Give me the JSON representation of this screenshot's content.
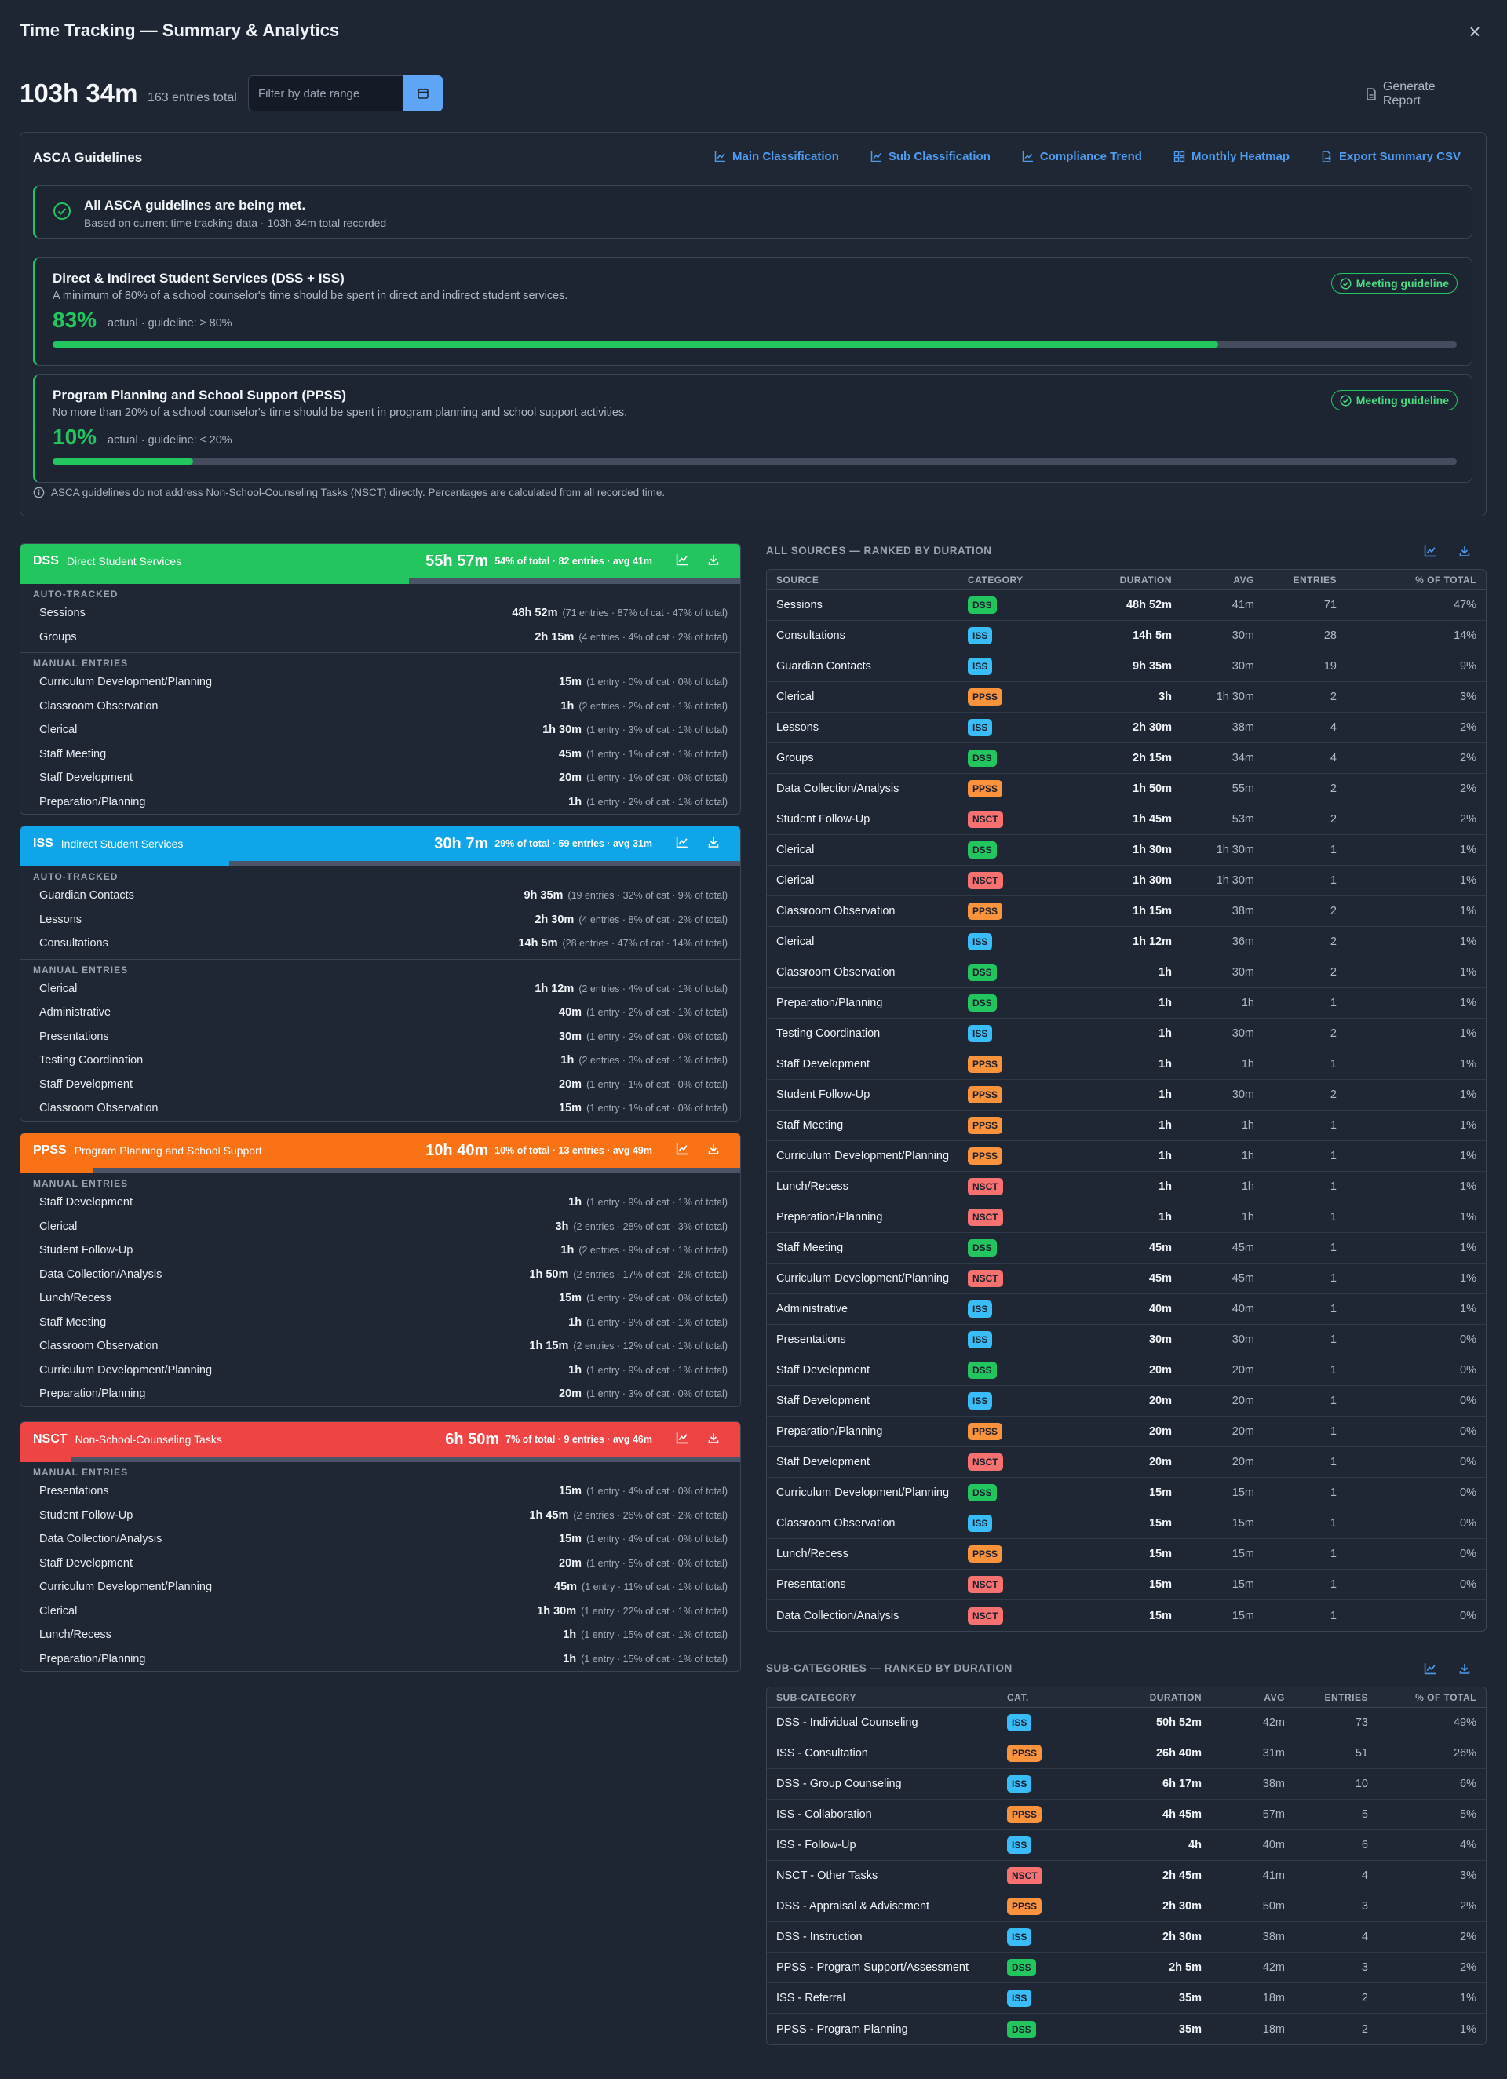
{
  "header": {
    "title": "Time Tracking — Summary & Analytics",
    "total": "103h 34m",
    "total_sub": "163 entries total",
    "filter_placeholder": "Filter by date range",
    "generate_report": "Generate Report"
  },
  "asca": {
    "title": "ASCA Guidelines",
    "links": [
      {
        "label": "Main Classification",
        "icon": "line-chart-icon"
      },
      {
        "label": "Sub Classification",
        "icon": "line-chart-icon"
      },
      {
        "label": "Compliance Trend",
        "icon": "trend-icon"
      },
      {
        "label": "Monthly Heatmap",
        "icon": "grid-icon"
      },
      {
        "label": "Export Summary CSV",
        "icon": "file-export-icon"
      }
    ],
    "alert_title": "All ASCA guidelines are being met.",
    "alert_sub": "Based on current time tracking data · 103h 34m total recorded",
    "guidelines": [
      {
        "title": "Direct & Indirect Student Services (DSS + ISS)",
        "desc": "A minimum of 80% of a school counselor's time should be spent in direct and indirect student services.",
        "pct": "83%",
        "actual": "actual  ·  guideline: ≥ 80%",
        "badge": "Meeting guideline",
        "progress": 0.83
      },
      {
        "title": "Program Planning and School Support (PPSS)",
        "desc": "No more than 20% of a school counselor's time should be spent in program planning and school support activities.",
        "pct": "10%",
        "actual": "actual  ·  guideline: ≤ 20%",
        "badge": "Meeting guideline",
        "progress": 0.1
      }
    ],
    "note": "ASCA guidelines do not address Non-School-Counseling Tasks (NSCT) directly. Percentages are calculated from all recorded time."
  },
  "categories": [
    {
      "code": "DSS",
      "name": "Direct Student Services",
      "color": "#22c55e",
      "duration": "55h 57m",
      "meta": "54% of total · 82 entries · avg 41m",
      "progress": 0.54,
      "sections": [
        {
          "label": "AUTO-TRACKED",
          "rows": [
            {
              "name": "Sessions",
              "dur": "48h 52m",
              "meta": "(71 entries · 87% of cat · 47% of total)"
            },
            {
              "name": "Groups",
              "dur": "2h 15m",
              "meta": "(4 entries · 4% of cat · 2% of total)"
            }
          ]
        },
        {
          "label": "MANUAL ENTRIES",
          "rows": [
            {
              "name": "Curriculum Development/Planning",
              "dur": "15m",
              "meta": "(1 entry · 0% of cat · 0% of total)"
            },
            {
              "name": "Classroom Observation",
              "dur": "1h",
              "meta": "(2 entries · 2% of cat · 1% of total)"
            },
            {
              "name": "Clerical",
              "dur": "1h 30m",
              "meta": "(1 entry · 3% of cat · 1% of total)"
            },
            {
              "name": "Staff Meeting",
              "dur": "45m",
              "meta": "(1 entry · 1% of cat · 1% of total)"
            },
            {
              "name": "Staff Development",
              "dur": "20m",
              "meta": "(1 entry · 1% of cat · 0% of total)"
            },
            {
              "name": "Preparation/Planning",
              "dur": "1h",
              "meta": "(1 entry · 2% of cat · 1% of total)"
            }
          ]
        }
      ]
    },
    {
      "code": "ISS",
      "name": "Indirect Student Services",
      "color": "#0ea5e9",
      "duration": "30h 7m",
      "meta": "29% of total · 59 entries · avg 31m",
      "progress": 0.29,
      "sections": [
        {
          "label": "AUTO-TRACKED",
          "rows": [
            {
              "name": "Guardian Contacts",
              "dur": "9h 35m",
              "meta": "(19 entries · 32% of cat · 9% of total)"
            },
            {
              "name": "Lessons",
              "dur": "2h 30m",
              "meta": "(4 entries · 8% of cat · 2% of total)"
            },
            {
              "name": "Consultations",
              "dur": "14h 5m",
              "meta": "(28 entries · 47% of cat · 14% of total)"
            }
          ]
        },
        {
          "label": "MANUAL ENTRIES",
          "rows": [
            {
              "name": "Clerical",
              "dur": "1h 12m",
              "meta": "(2 entries · 4% of cat · 1% of total)"
            },
            {
              "name": "Administrative",
              "dur": "40m",
              "meta": "(1 entry · 2% of cat · 1% of total)"
            },
            {
              "name": "Presentations",
              "dur": "30m",
              "meta": "(1 entry · 2% of cat · 0% of total)"
            },
            {
              "name": "Testing Coordination",
              "dur": "1h",
              "meta": "(2 entries · 3% of cat · 1% of total)"
            },
            {
              "name": "Staff Development",
              "dur": "20m",
              "meta": "(1 entry · 1% of cat · 0% of total)"
            },
            {
              "name": "Classroom Observation",
              "dur": "15m",
              "meta": "(1 entry · 1% of cat · 0% of total)"
            }
          ]
        }
      ]
    },
    {
      "code": "PPSS",
      "name": "Program Planning and School Support",
      "color": "#f97316",
      "duration": "10h 40m",
      "meta": "10% of total · 13 entries · avg 49m",
      "progress": 0.1,
      "sections": [
        {
          "label": "MANUAL ENTRIES",
          "rows": [
            {
              "name": "Staff Development",
              "dur": "1h",
              "meta": "(1 entry · 9% of cat · 1% of total)"
            },
            {
              "name": "Clerical",
              "dur": "3h",
              "meta": "(2 entries · 28% of cat · 3% of total)"
            },
            {
              "name": "Student Follow-Up",
              "dur": "1h",
              "meta": "(2 entries · 9% of cat · 1% of total)"
            },
            {
              "name": "Data Collection/Analysis",
              "dur": "1h 50m",
              "meta": "(2 entries · 17% of cat · 2% of total)"
            },
            {
              "name": "Lunch/Recess",
              "dur": "15m",
              "meta": "(1 entry · 2% of cat · 0% of total)"
            },
            {
              "name": "Staff Meeting",
              "dur": "1h",
              "meta": "(1 entry · 9% of cat · 1% of total)"
            },
            {
              "name": "Classroom Observation",
              "dur": "1h 15m",
              "meta": "(2 entries · 12% of cat · 1% of total)"
            },
            {
              "name": "Curriculum Development/Planning",
              "dur": "1h",
              "meta": "(1 entry · 9% of cat · 1% of total)"
            },
            {
              "name": "Preparation/Planning",
              "dur": "20m",
              "meta": "(1 entry · 3% of cat · 0% of total)"
            }
          ]
        }
      ]
    },
    {
      "code": "NSCT",
      "name": "Non-School-Counseling Tasks",
      "color": "#ef4444",
      "duration": "6h 50m",
      "meta": "7% of total · 9 entries · avg 46m",
      "progress": 0.07,
      "sections": [
        {
          "label": "MANUAL ENTRIES",
          "rows": [
            {
              "name": "Presentations",
              "dur": "15m",
              "meta": "(1 entry · 4% of cat · 0% of total)"
            },
            {
              "name": "Student Follow-Up",
              "dur": "1h 45m",
              "meta": "(2 entries · 26% of cat · 2% of total)"
            },
            {
              "name": "Data Collection/Analysis",
              "dur": "15m",
              "meta": "(1 entry · 4% of cat · 0% of total)"
            },
            {
              "name": "Staff Development",
              "dur": "20m",
              "meta": "(1 entry · 5% of cat · 0% of total)"
            },
            {
              "name": "Curriculum Development/Planning",
              "dur": "45m",
              "meta": "(1 entry · 11% of cat · 1% of total)"
            },
            {
              "name": "Clerical",
              "dur": "1h 30m",
              "meta": "(1 entry · 22% of cat · 1% of total)"
            },
            {
              "name": "Lunch/Recess",
              "dur": "1h",
              "meta": "(1 entry · 15% of cat · 1% of total)"
            },
            {
              "name": "Preparation/Planning",
              "dur": "1h",
              "meta": "(1 entry · 15% of cat · 1% of total)"
            }
          ]
        }
      ]
    }
  ],
  "colors": {
    "DSS": "#22c55e",
    "ISS": "#38bdf8",
    "PPSS": "#fb923c",
    "NSCT": "#f87171"
  },
  "all_sources": {
    "title": "ALL SOURCES — RANKED BY DURATION",
    "headers": [
      "SOURCE",
      "CATEGORY",
      "DURATION",
      "AVG",
      "ENTRIES",
      "% OF TOTAL"
    ],
    "rows": [
      [
        "Sessions",
        "DSS",
        "48h 52m",
        "41m",
        "71",
        "47%"
      ],
      [
        "Consultations",
        "ISS",
        "14h 5m",
        "30m",
        "28",
        "14%"
      ],
      [
        "Guardian Contacts",
        "ISS",
        "9h 35m",
        "30m",
        "19",
        "9%"
      ],
      [
        "Clerical",
        "PPSS",
        "3h",
        "1h 30m",
        "2",
        "3%"
      ],
      [
        "Lessons",
        "ISS",
        "2h 30m",
        "38m",
        "4",
        "2%"
      ],
      [
        "Groups",
        "DSS",
        "2h 15m",
        "34m",
        "4",
        "2%"
      ],
      [
        "Data Collection/Analysis",
        "PPSS",
        "1h 50m",
        "55m",
        "2",
        "2%"
      ],
      [
        "Student Follow-Up",
        "NSCT",
        "1h 45m",
        "53m",
        "2",
        "2%"
      ],
      [
        "Clerical",
        "DSS",
        "1h 30m",
        "1h 30m",
        "1",
        "1%"
      ],
      [
        "Clerical",
        "NSCT",
        "1h 30m",
        "1h 30m",
        "1",
        "1%"
      ],
      [
        "Classroom Observation",
        "PPSS",
        "1h 15m",
        "38m",
        "2",
        "1%"
      ],
      [
        "Clerical",
        "ISS",
        "1h 12m",
        "36m",
        "2",
        "1%"
      ],
      [
        "Classroom Observation",
        "DSS",
        "1h",
        "30m",
        "2",
        "1%"
      ],
      [
        "Preparation/Planning",
        "DSS",
        "1h",
        "1h",
        "1",
        "1%"
      ],
      [
        "Testing Coordination",
        "ISS",
        "1h",
        "30m",
        "2",
        "1%"
      ],
      [
        "Staff Development",
        "PPSS",
        "1h",
        "1h",
        "1",
        "1%"
      ],
      [
        "Student Follow-Up",
        "PPSS",
        "1h",
        "30m",
        "2",
        "1%"
      ],
      [
        "Staff Meeting",
        "PPSS",
        "1h",
        "1h",
        "1",
        "1%"
      ],
      [
        "Curriculum Development/Planning",
        "PPSS",
        "1h",
        "1h",
        "1",
        "1%"
      ],
      [
        "Lunch/Recess",
        "NSCT",
        "1h",
        "1h",
        "1",
        "1%"
      ],
      [
        "Preparation/Planning",
        "NSCT",
        "1h",
        "1h",
        "1",
        "1%"
      ],
      [
        "Staff Meeting",
        "DSS",
        "45m",
        "45m",
        "1",
        "1%"
      ],
      [
        "Curriculum Development/Planning",
        "NSCT",
        "45m",
        "45m",
        "1",
        "1%"
      ],
      [
        "Administrative",
        "ISS",
        "40m",
        "40m",
        "1",
        "1%"
      ],
      [
        "Presentations",
        "ISS",
        "30m",
        "30m",
        "1",
        "0%"
      ],
      [
        "Staff Development",
        "DSS",
        "20m",
        "20m",
        "1",
        "0%"
      ],
      [
        "Staff Development",
        "ISS",
        "20m",
        "20m",
        "1",
        "0%"
      ],
      [
        "Preparation/Planning",
        "PPSS",
        "20m",
        "20m",
        "1",
        "0%"
      ],
      [
        "Staff Development",
        "NSCT",
        "20m",
        "20m",
        "1",
        "0%"
      ],
      [
        "Curriculum Development/Planning",
        "DSS",
        "15m",
        "15m",
        "1",
        "0%"
      ],
      [
        "Classroom Observation",
        "ISS",
        "15m",
        "15m",
        "1",
        "0%"
      ],
      [
        "Lunch/Recess",
        "PPSS",
        "15m",
        "15m",
        "1",
        "0%"
      ],
      [
        "Presentations",
        "NSCT",
        "15m",
        "15m",
        "1",
        "0%"
      ],
      [
        "Data Collection/Analysis",
        "NSCT",
        "15m",
        "15m",
        "1",
        "0%"
      ]
    ]
  },
  "sub_categories": {
    "title": "SUB-CATEGORIES — RANKED BY DURATION",
    "headers": [
      "SUB-CATEGORY",
      "CAT.",
      "DURATION",
      "AVG",
      "ENTRIES",
      "% OF TOTAL"
    ],
    "rows": [
      [
        "DSS - Individual Counseling",
        "ISS",
        "50h 52m",
        "42m",
        "73",
        "49%"
      ],
      [
        "ISS - Consultation",
        "PPSS",
        "26h 40m",
        "31m",
        "51",
        "26%"
      ],
      [
        "DSS - Group Counseling",
        "ISS",
        "6h 17m",
        "38m",
        "10",
        "6%"
      ],
      [
        "ISS - Collaboration",
        "PPSS",
        "4h 45m",
        "57m",
        "5",
        "5%"
      ],
      [
        "ISS - Follow-Up",
        "ISS",
        "4h",
        "40m",
        "6",
        "4%"
      ],
      [
        "NSCT - Other Tasks",
        "NSCT",
        "2h 45m",
        "41m",
        "4",
        "3%"
      ],
      [
        "DSS - Appraisal & Advisement",
        "PPSS",
        "2h 30m",
        "50m",
        "3",
        "2%"
      ],
      [
        "DSS - Instruction",
        "ISS",
        "2h 30m",
        "38m",
        "4",
        "2%"
      ],
      [
        "PPSS - Program Support/Assessment",
        "DSS",
        "2h 5m",
        "42m",
        "3",
        "2%"
      ],
      [
        "ISS - Referral",
        "ISS",
        "35m",
        "18m",
        "2",
        "1%"
      ],
      [
        "PPSS - Program Planning",
        "DSS",
        "35m",
        "18m",
        "2",
        "1%"
      ]
    ]
  }
}
